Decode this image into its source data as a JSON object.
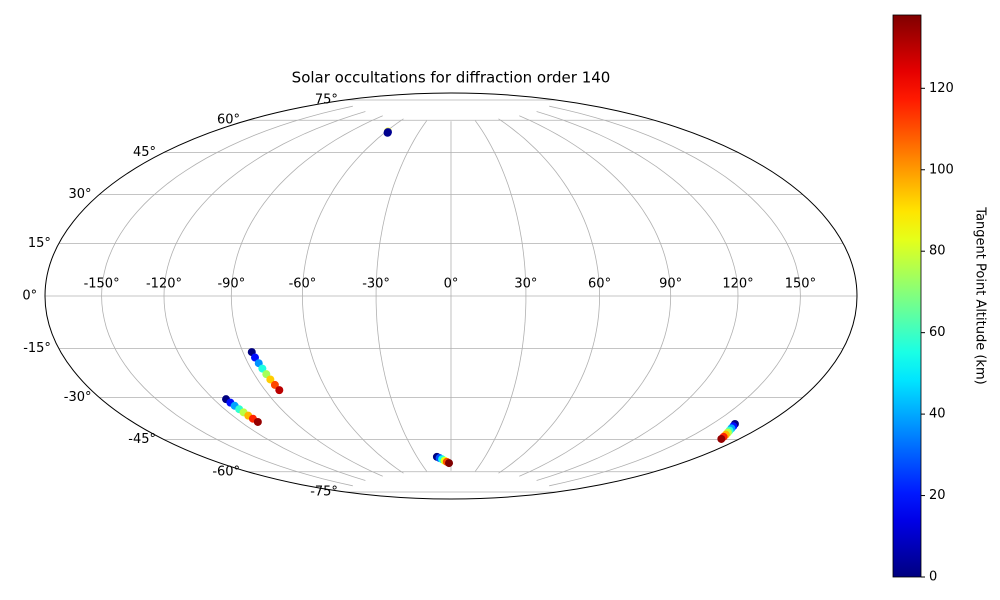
{
  "chart_data": {
    "type": "scatter",
    "projection": "hammer",
    "title": "Solar occultations for diffraction order 140",
    "grid": true,
    "colormap": "jet",
    "colorbar_label": "Tangent Point Altitude (km)",
    "clim": [
      0,
      138
    ],
    "colorbar_ticks": [
      0,
      20,
      40,
      60,
      80,
      100,
      120
    ],
    "xticks": [
      {
        "value": -150,
        "label": "-150°"
      },
      {
        "value": -120,
        "label": "-120°"
      },
      {
        "value": -90,
        "label": "-90°"
      },
      {
        "value": -60,
        "label": "-60°"
      },
      {
        "value": -30,
        "label": "-30°"
      },
      {
        "value": 0,
        "label": "0°"
      },
      {
        "value": 30,
        "label": "30°"
      },
      {
        "value": 60,
        "label": "60°"
      },
      {
        "value": 90,
        "label": "90°"
      },
      {
        "value": 120,
        "label": "120°"
      },
      {
        "value": 150,
        "label": "150°"
      }
    ],
    "yticks": [
      {
        "value": -75,
        "label": "-75°"
      },
      {
        "value": -60,
        "label": "-60°"
      },
      {
        "value": -45,
        "label": "-45°"
      },
      {
        "value": -30,
        "label": "-30°"
      },
      {
        "value": -15,
        "label": "-15°"
      },
      {
        "value": 0,
        "label": "0°"
      },
      {
        "value": 15,
        "label": "15°"
      },
      {
        "value": 30,
        "label": "30°"
      },
      {
        "value": 45,
        "label": "45°"
      },
      {
        "value": 60,
        "label": "60°"
      },
      {
        "value": 75,
        "label": "75°"
      }
    ],
    "series": [
      {
        "x": [
          -58.5,
          -57.8,
          -57.5,
          -86,
          -85.6,
          -85.1,
          -84.7,
          -84.3,
          -83.9,
          -83.4,
          -83,
          -113.6,
          -113.2,
          -112.7,
          -112.3,
          -111.9,
          -111.5,
          -111,
          -110.6,
          -12.5,
          -10.4,
          -8.3,
          -6.2,
          -4.1,
          -2,
          162.6,
          163.7,
          164.7,
          165.8,
          166.8,
          167.9,
          168.9,
          170
        ],
        "y": [
          68.6,
          68.3,
          68.0,
          -21,
          -23.1,
          -25.3,
          -27.4,
          -29.6,
          -31.7,
          -33.9,
          -36,
          -37.5,
          -38.9,
          -40.2,
          -41.6,
          -42.9,
          -44.3,
          -45.6,
          -47,
          -68.1,
          -68.7,
          -69.3,
          -70,
          -70.6,
          -71.2,
          -41.7,
          -42.4,
          -43.1,
          -43.8,
          -44.4,
          -45.1,
          -45.8,
          -46.5
        ],
        "values": [
          85,
          10,
          2,
          0,
          19,
          37,
          56,
          74,
          93,
          111,
          130,
          0,
          19,
          39,
          58,
          77,
          96,
          116,
          135,
          0,
          28,
          55,
          83,
          110,
          138,
          0,
          19,
          39,
          58,
          77,
          96,
          116,
          135
        ]
      }
    ]
  }
}
